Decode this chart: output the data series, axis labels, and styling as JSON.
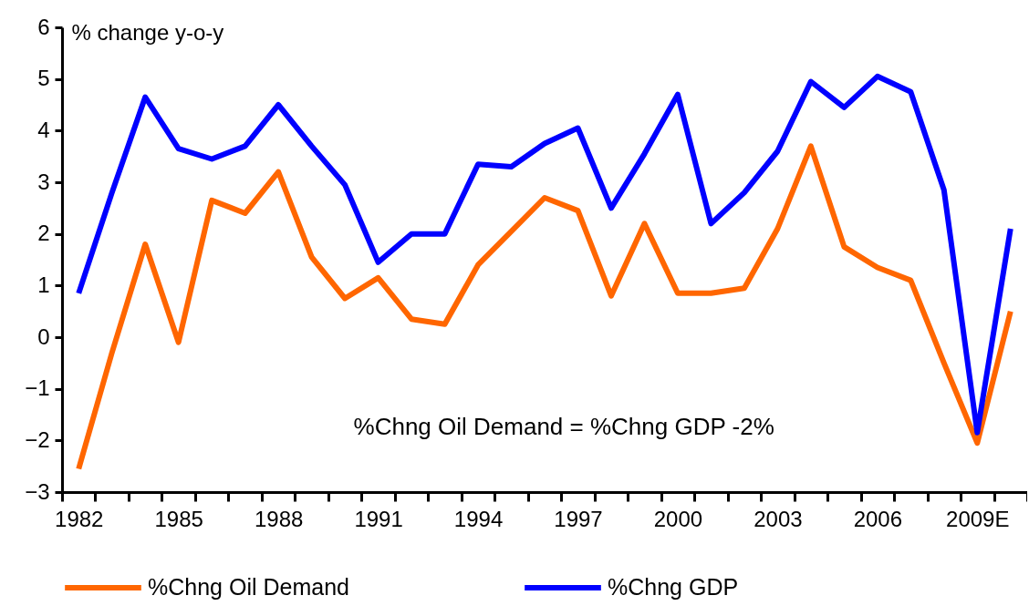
{
  "chart_data": {
    "type": "line",
    "ylabel": "% change y-o-y",
    "categories": [
      "1982",
      null,
      null,
      "1985",
      null,
      null,
      "1988",
      null,
      null,
      "1991",
      null,
      null,
      "1994",
      null,
      null,
      "1997",
      null,
      null,
      "2000",
      null,
      null,
      "2003",
      null,
      null,
      "2006",
      null,
      null,
      "2009E",
      null
    ],
    "series": [
      {
        "name": "%Chng Oil Demand",
        "color": "#ff6600",
        "values": [
          -2.55,
          -0.3,
          1.8,
          -0.1,
          2.65,
          2.4,
          3.2,
          1.55,
          0.75,
          1.15,
          0.35,
          0.25,
          1.4,
          2.05,
          2.7,
          2.45,
          0.8,
          2.2,
          0.85,
          0.85,
          0.95,
          2.1,
          3.7,
          1.75,
          1.35,
          1.1,
          -0.5,
          -2.05,
          0.5
        ]
      },
      {
        "name": "%Chng GDP",
        "color": "#0000ff",
        "values": [
          0.85,
          2.8,
          4.65,
          3.65,
          3.45,
          3.7,
          4.5,
          3.7,
          2.95,
          1.45,
          2.0,
          2.0,
          3.35,
          3.3,
          3.75,
          4.05,
          2.5,
          3.55,
          4.7,
          2.2,
          2.8,
          3.6,
          4.95,
          4.45,
          5.05,
          4.75,
          2.85,
          -1.85,
          2.1
        ]
      }
    ],
    "ylim": [
      -3,
      6
    ],
    "yticks": [
      -3,
      -2,
      -1,
      0,
      1,
      2,
      3,
      4,
      5,
      6
    ],
    "annotations": [
      "%Chng Oil Demand =  %Chng GDP -2%"
    ],
    "legend": "bottom",
    "grid": false,
    "marker": "none",
    "line_style": "solid"
  }
}
